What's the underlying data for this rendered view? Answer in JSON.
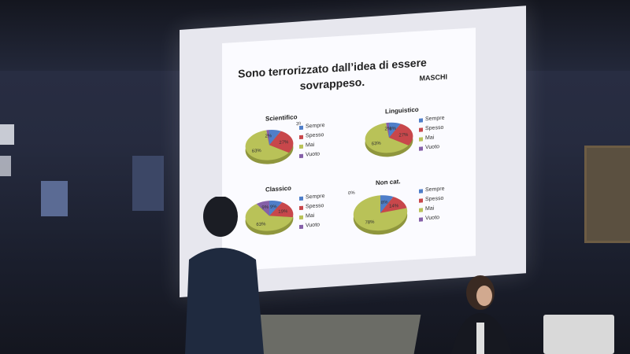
{
  "slide": {
    "title_line1": "Sono terrorizzato dall’idea di essere",
    "title_line2": "sovrappeso.",
    "tag": "MASCHI"
  },
  "legend_labels": [
    "Sempre",
    "Spesso",
    "Mai",
    "Vuoto"
  ],
  "colors": {
    "sempre": "#4f7ec9",
    "spesso": "#c8474b",
    "mai": "#b9c258",
    "vuoto": "#8560a8"
  },
  "chart_data": [
    {
      "type": "pie",
      "title": "Scientifico",
      "categories": [
        "Sempre",
        "Spesso",
        "Mai",
        "Vuoto"
      ],
      "values": [
        8,
        27,
        63,
        2
      ],
      "labels": [
        "",
        "27%",
        "63%",
        "2%"
      ],
      "extra_label": "3%"
    },
    {
      "type": "pie",
      "title": "Linguistico",
      "categories": [
        "Sempre",
        "Spesso",
        "Mai",
        "Vuoto"
      ],
      "values": [
        8,
        27,
        63,
        2
      ],
      "labels": [
        "8%",
        "27%",
        "63%",
        "2%"
      ]
    },
    {
      "type": "pie",
      "title": "Classico",
      "categories": [
        "Sempre",
        "Spesso",
        "Mai",
        "Vuoto"
      ],
      "values": [
        9,
        19,
        63,
        9
      ],
      "labels": [
        "9%",
        "19%",
        "63%",
        "9%"
      ]
    },
    {
      "type": "pie",
      "title": "Non cat.",
      "categories": [
        "Sempre",
        "Spesso",
        "Mai",
        "Vuoto"
      ],
      "values": [
        8,
        14,
        78,
        0
      ],
      "labels": [
        "8%",
        "14%",
        "78%",
        "0%"
      ]
    }
  ]
}
